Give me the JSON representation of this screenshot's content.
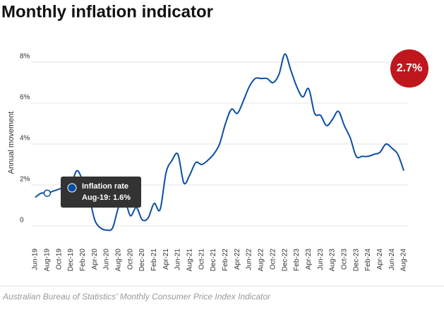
{
  "chart_data": {
    "type": "line",
    "title": "Monthly inflation indicator",
    "y_label": "Annual movement",
    "source": "Australian Bureau of Statistics' Monthly Consumer Price Index Indicator",
    "badge": "2.7%",
    "tooltip": {
      "title": "Inflation rate",
      "text": "Aug-19: 1.6%"
    },
    "categories": [
      "Jun-19",
      null,
      "Aug-19",
      null,
      "Oct-19",
      null,
      "Dec-19",
      null,
      "Feb-20",
      null,
      "Apr-20",
      null,
      "Jun-20",
      null,
      "Aug-20",
      null,
      "Oct-20",
      null,
      "Dec-20",
      null,
      "Feb-21",
      null,
      "Apr-21",
      null,
      "Jun-21",
      null,
      "Aug-21",
      null,
      "Oct-21",
      null,
      "Dec-21",
      null,
      "Feb-22",
      null,
      "Apr-22",
      null,
      "Jun-22",
      null,
      "Aug-22",
      null,
      "Oct-22",
      null,
      "Dec-22",
      null,
      "Feb-23",
      null,
      "Apr-23",
      null,
      "Jun-23",
      null,
      "Aug-23",
      null,
      "Oct-23",
      null,
      "Dec-23",
      null,
      "Feb-24",
      null,
      "Apr-24",
      null,
      "Jun-24",
      null,
      "Aug-24"
    ],
    "series": [
      {
        "name": "Inflation rate",
        "color": "#0b4ea2",
        "values": [
          1.4,
          1.6,
          1.6,
          1.7,
          1.8,
          1.9,
          2.0,
          2.7,
          2.2,
          1.5,
          0.3,
          -0.1,
          -0.2,
          -0.1,
          0.9,
          1.3,
          0.5,
          0.9,
          0.3,
          0.4,
          1.1,
          0.8,
          2.6,
          3.2,
          3.5,
          2.1,
          2.5,
          3.1,
          3.0,
          3.2,
          3.5,
          4.0,
          5.0,
          5.7,
          5.5,
          6.1,
          6.8,
          7.2,
          7.2,
          7.2,
          7.0,
          7.4,
          8.4,
          7.6,
          6.8,
          6.3,
          6.7,
          5.5,
          5.4,
          4.9,
          5.2,
          5.6,
          4.9,
          4.3,
          3.4,
          3.4,
          3.4,
          3.5,
          3.6,
          4.0,
          3.8,
          3.5,
          2.7
        ]
      }
    ],
    "highlight_index": 2,
    "ylim": [
      -0.5,
      8.8
    ],
    "yticks": [
      0,
      {
        "value": 2,
        "label": "2%"
      },
      {
        "value": 4,
        "label": "4%"
      },
      {
        "value": 6,
        "label": "6%"
      },
      {
        "value": 8,
        "label": "8%"
      }
    ],
    "grid": true
  }
}
